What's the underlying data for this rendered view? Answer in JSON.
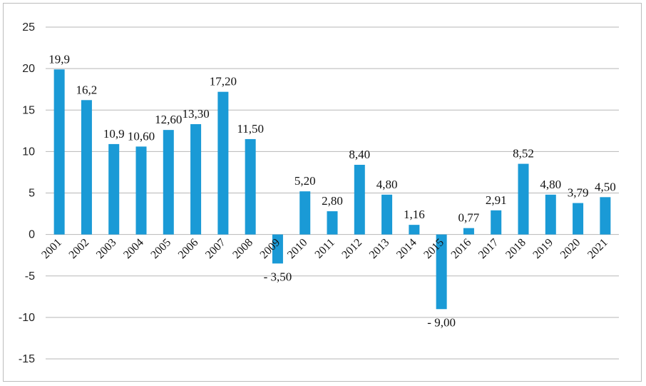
{
  "chart_data": {
    "type": "bar",
    "title": "",
    "xlabel": "",
    "ylabel": "",
    "ylim": [
      -15,
      25
    ],
    "yticks": [
      25,
      20,
      15,
      10,
      5,
      0,
      -5,
      -10,
      -15
    ],
    "bar_color": "#1a9ad6",
    "categories": [
      "2001",
      "2002",
      "2003",
      "2004",
      "2005",
      "2006",
      "2007",
      "2008",
      "2009",
      "2010",
      "2011",
      "2012",
      "2013",
      "2014",
      "2015",
      "2016",
      "2017",
      "2018",
      "2019",
      "2020",
      "2021"
    ],
    "values": [
      19.9,
      16.2,
      10.9,
      10.6,
      12.6,
      13.3,
      17.2,
      11.5,
      -3.5,
      5.2,
      2.8,
      8.4,
      4.8,
      1.16,
      -9.0,
      0.77,
      2.91,
      8.52,
      4.8,
      3.79,
      4.5
    ],
    "data_labels": [
      "19,9",
      "16,2",
      "10,9",
      "10,60",
      "12,60",
      "13,30",
      "17,20",
      "11,50",
      "- 3,50",
      "5,20",
      "2,80",
      "8,40",
      "4,80",
      "1,16",
      "- 9,00",
      "0,77",
      "2,91",
      "8,52",
      "4,80",
      "3,79",
      "4,50"
    ]
  }
}
